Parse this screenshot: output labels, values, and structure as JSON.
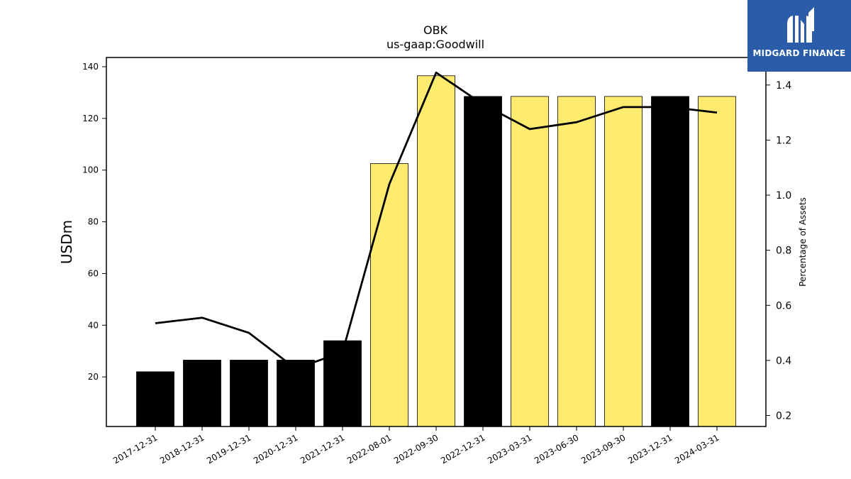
{
  "logo": {
    "text": "MIDGARD FINANCE",
    "color": "#2a5caa"
  },
  "chart_data": {
    "type": "bar",
    "title": "OBK",
    "subtitle": "us-gaap:Goodwill",
    "ylabel": "USDm",
    "y2label": "Percentage of Assets",
    "categories": [
      "2017-12-31",
      "2018-12-31",
      "2019-12-31",
      "2020-12-31",
      "2021-12-31",
      "2022-08-01",
      "2022-09-30",
      "2022-12-31",
      "2023-03-31",
      "2023-06-30",
      "2023-09-30",
      "2023-12-31",
      "2024-03-31"
    ],
    "series": [
      {
        "type": "bar",
        "values": [
          22,
          26.5,
          26.5,
          26.5,
          34,
          102.5,
          136.5,
          128.5,
          128.5,
          128.5,
          128.5,
          128.5,
          128.5
        ],
        "colors": [
          "#000000",
          "#000000",
          "#000000",
          "#000000",
          "#000000",
          "#ffec6e",
          "#ffec6e",
          "#000000",
          "#ffec6e",
          "#ffec6e",
          "#ffec6e",
          "#000000",
          "#ffec6e"
        ]
      },
      {
        "type": "line",
        "axis": "right",
        "values": [
          0.535,
          0.555,
          0.5,
          0.37,
          0.43,
          1.04,
          1.445,
          1.33,
          1.24,
          1.265,
          1.32,
          1.32,
          1.3
        ],
        "color": "#000000"
      }
    ],
    "yticks": [
      20,
      40,
      60,
      80,
      100,
      120,
      140
    ],
    "ylim": [
      0,
      140
    ],
    "y2ticks": [
      "0.2",
      "0.4",
      "0.6",
      "0.8",
      "1.0",
      "1.2",
      "1.4"
    ],
    "y2lim": [
      0.16,
      1.5
    ],
    "grid": false,
    "legend": "none"
  }
}
